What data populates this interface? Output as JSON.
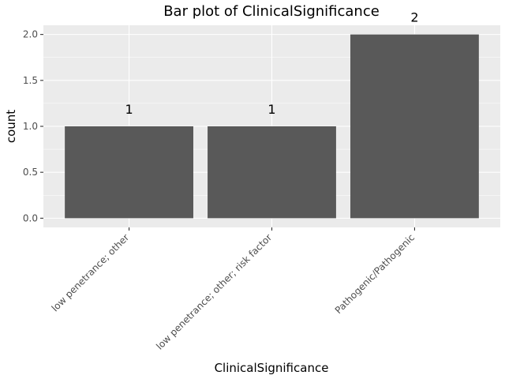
{
  "chart_data": {
    "type": "bar",
    "title": "Bar plot of ClinicalSignificance",
    "xlabel": "ClinicalSignificance",
    "ylabel": "count",
    "categories": [
      "low penetrance; other",
      "low penetrance; other; risk factor",
      "Pathogenic/Pathogenic"
    ],
    "values": [
      1,
      1,
      2
    ],
    "data_labels": [
      "1",
      "1",
      "2"
    ],
    "ylim": [
      -0.1,
      2.1
    ],
    "yticks": [
      0.0,
      0.5,
      1.0,
      1.5,
      2.0
    ],
    "ytick_labels": [
      "0.0",
      "0.5",
      "1.0",
      "1.5",
      "2.0"
    ],
    "grid": true,
    "legend": "none",
    "colors": {
      "bar": "#595959",
      "panel": "#ebebeb",
      "grid": "#ffffff"
    }
  }
}
